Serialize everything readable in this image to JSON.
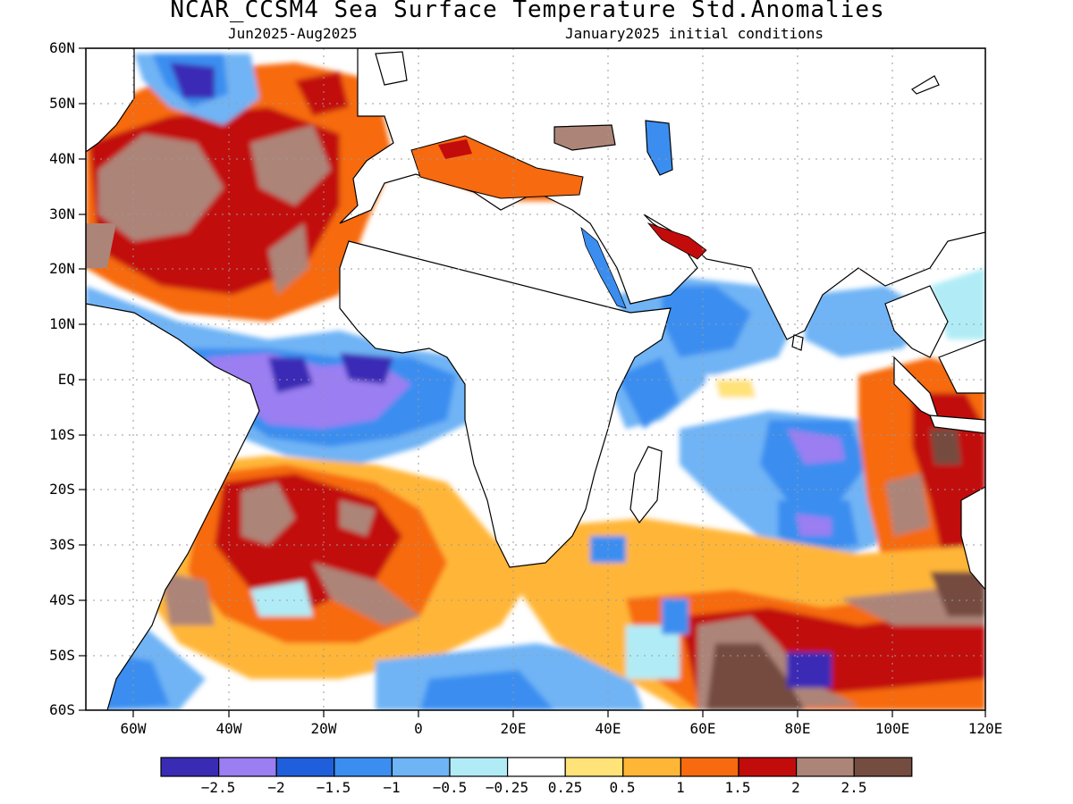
{
  "title": "NCAR_CCSM4 Sea Surface Temperature Std.Anomalies",
  "subtitle_left": "Jun2025-Aug2025",
  "subtitle_right": "January2025 initial conditions",
  "y_axis": [
    "60N",
    "50N",
    "40N",
    "30N",
    "20N",
    "10N",
    "EQ",
    "10S",
    "20S",
    "30S",
    "40S",
    "50S",
    "60S"
  ],
  "x_axis": [
    "60W",
    "40W",
    "20W",
    "0",
    "20E",
    "40E",
    "60E",
    "80E",
    "100E",
    "120E"
  ],
  "colorbar": {
    "colors": [
      "#3a2bb5",
      "#9a7ef2",
      "#1f5fdc",
      "#3b8ef0",
      "#6fb4f5",
      "#b1ecf6",
      "#ffffff",
      "#ffe278",
      "#ffb637",
      "#f76a10",
      "#c20c0c",
      "#ad8478",
      "#744c40"
    ],
    "labels": [
      "−2.5",
      "−2",
      "−1.5",
      "−1",
      "−0.5",
      "−0.25",
      "0.25",
      "0.5",
      "1",
      "1.5",
      "2",
      "2.5"
    ]
  }
}
